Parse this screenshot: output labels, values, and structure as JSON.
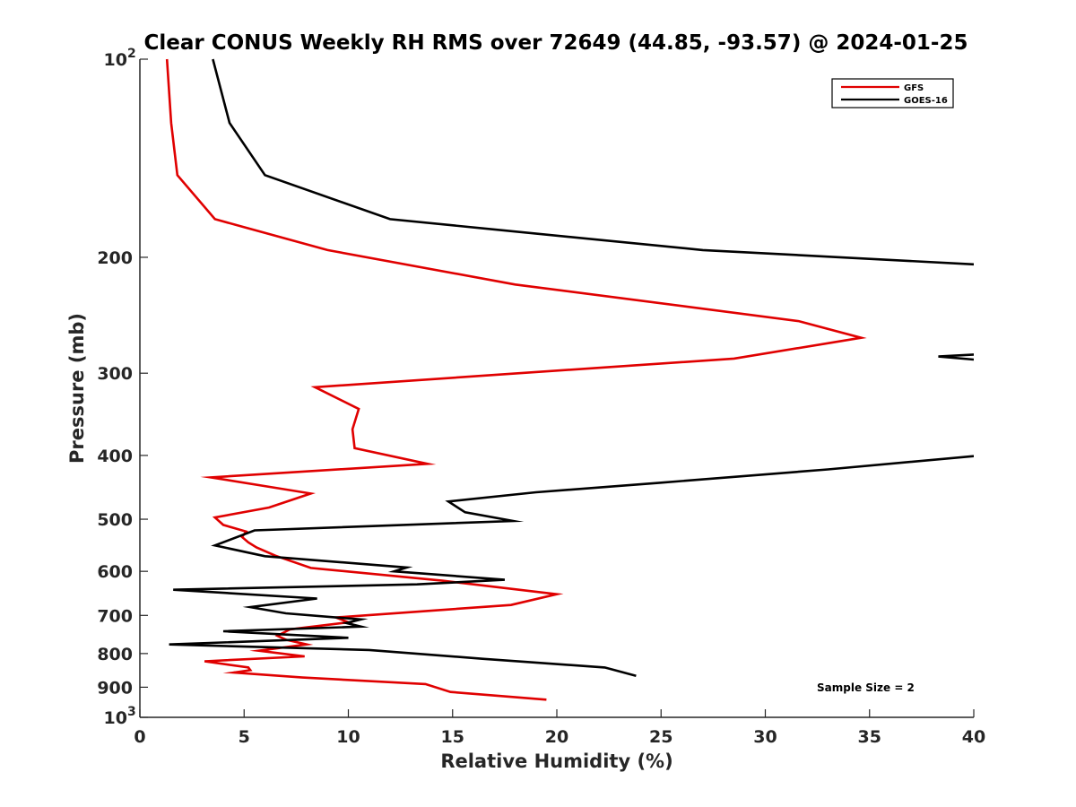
{
  "chart_data": {
    "type": "line",
    "title": "Clear CONUS Weekly RH RMS over 72649 (44.85, -93.57) @ 2024-01-25",
    "xlabel": "Relative Humidity (%)",
    "ylabel": "Pressure (mb)",
    "xlim": [
      0,
      40
    ],
    "ylim": [
      100,
      1000
    ],
    "y_scale": "log",
    "y_reversed": true,
    "x_ticks": [
      "0",
      "5",
      "10",
      "15",
      "20",
      "25",
      "30",
      "35",
      "40"
    ],
    "y_ticks": [
      {
        "value": 100,
        "label": "10",
        "sup": "2"
      },
      {
        "value": 200,
        "label": "200",
        "sup": ""
      },
      {
        "value": 300,
        "label": "300",
        "sup": ""
      },
      {
        "value": 400,
        "label": "400",
        "sup": ""
      },
      {
        "value": 500,
        "label": "500",
        "sup": ""
      },
      {
        "value": 600,
        "label": "600",
        "sup": ""
      },
      {
        "value": 700,
        "label": "700",
        "sup": ""
      },
      {
        "value": 800,
        "label": "800",
        "sup": ""
      },
      {
        "value": 900,
        "label": "900",
        "sup": ""
      },
      {
        "value": 1000,
        "label": "10",
        "sup": "3"
      }
    ],
    "legend_position": "top-right",
    "grid": false,
    "annotation": "Sample Size = 2",
    "series": [
      {
        "name": "GFS",
        "color": "#e00000",
        "points": [
          [
            1.3,
            100
          ],
          [
            1.5,
            125
          ],
          [
            1.8,
            150
          ],
          [
            3.6,
            175
          ],
          [
            9.0,
            195
          ],
          [
            18.0,
            220
          ],
          [
            31.6,
            250
          ],
          [
            34.6,
            265
          ],
          [
            28.5,
            285
          ],
          [
            8.4,
            315
          ],
          [
            10.5,
            340
          ],
          [
            10.2,
            365
          ],
          [
            10.3,
            390
          ],
          [
            13.8,
            412
          ],
          [
            3.4,
            432
          ],
          [
            8.2,
            457
          ],
          [
            6.2,
            480
          ],
          [
            3.6,
            497
          ],
          [
            4.0,
            510
          ],
          [
            5.1,
            522
          ],
          [
            4.9,
            532
          ],
          [
            5.2,
            542
          ],
          [
            5.6,
            552
          ],
          [
            6.5,
            568
          ],
          [
            8.2,
            593
          ],
          [
            14.5,
            620
          ],
          [
            20.0,
            650
          ],
          [
            17.8,
            675
          ],
          [
            9.4,
            705
          ],
          [
            10.0,
            717
          ],
          [
            7.2,
            735
          ],
          [
            6.6,
            752
          ],
          [
            7.0,
            762
          ],
          [
            8.0,
            775
          ],
          [
            5.7,
            792
          ],
          [
            7.9,
            808
          ],
          [
            3.1,
            822
          ],
          [
            5.2,
            840
          ],
          [
            5.3,
            848
          ],
          [
            4.5,
            855
          ],
          [
            7.8,
            870
          ],
          [
            13.7,
            890
          ],
          [
            14.9,
            915
          ],
          [
            19.5,
            940
          ]
        ]
      },
      {
        "name": "GOES-16",
        "color": "#000000",
        "segments": [
          [
            [
              3.5,
              100
            ],
            [
              4.3,
              125
            ],
            [
              6.0,
              150
            ],
            [
              12.0,
              175
            ],
            [
              27.0,
              195
            ],
            [
              40.0,
              205
            ]
          ],
          [
            [
              40.0,
              281
            ],
            [
              38.3,
              283
            ],
            [
              40.0,
              286
            ]
          ],
          [
            [
              40.0,
              401
            ],
            [
              33.0,
              420
            ],
            [
              25.0,
              440
            ],
            [
              19.0,
              455
            ],
            [
              14.8,
              470
            ],
            [
              15.6,
              488
            ],
            [
              17.9,
              503
            ],
            [
              5.5,
              520
            ],
            [
              3.6,
              548
            ],
            [
              6.0,
              569
            ],
            [
              12.8,
              592
            ],
            [
              12.2,
              600
            ],
            [
              17.5,
              618
            ],
            [
              13.3,
              628
            ],
            [
              1.6,
              640
            ],
            [
              8.5,
              660
            ],
            [
              5.3,
              680
            ],
            [
              7.0,
              695
            ],
            [
              10.6,
              710
            ],
            [
              9.9,
              719
            ],
            [
              10.6,
              728
            ],
            [
              4.0,
              740
            ],
            [
              10.0,
              757
            ],
            [
              1.4,
              775
            ],
            [
              11.0,
              790
            ],
            [
              16.5,
              815
            ],
            [
              22.3,
              840
            ],
            [
              23.8,
              865
            ]
          ]
        ]
      }
    ]
  }
}
